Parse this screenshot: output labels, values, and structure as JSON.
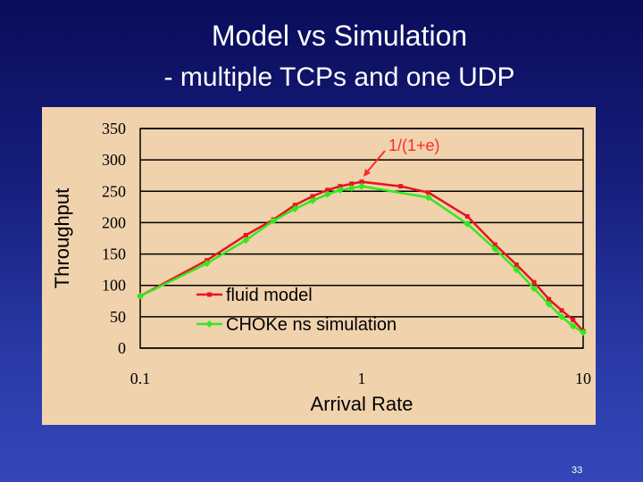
{
  "slide": {
    "title_line1": "Model vs Simulation",
    "title_line2": "- multiple TCPs and one UDP",
    "slide_number": "33"
  },
  "colors": {
    "background": "#1a237e",
    "panel": "#f0d2ad",
    "fluid_model": "#e8141e",
    "choke_sim": "#33e820",
    "annotation": "#ff2a2a"
  },
  "chart_data": {
    "type": "line",
    "title": "",
    "xlabel": "Arrival Rate",
    "ylabel": "Throughput",
    "x_scale": "log",
    "xlim": [
      0.1,
      10
    ],
    "ylim": [
      0,
      350
    ],
    "x_ticks": [
      "0.1",
      "1",
      "10"
    ],
    "y_ticks": [
      "0",
      "50",
      "100",
      "150",
      "200",
      "250",
      "300",
      "350"
    ],
    "grid": "horizontal",
    "legend_position": "bottom-center",
    "annotation": {
      "text": "1/(1+e)",
      "x": 1.0,
      "y": 266
    },
    "series": [
      {
        "name": "fluid model",
        "x": [
          0.1,
          0.2,
          0.3,
          0.4,
          0.5,
          0.6,
          0.7,
          0.8,
          0.9,
          1.0,
          1.5,
          2.0,
          3.0,
          4.0,
          5.0,
          6.0,
          7.0,
          8.0,
          9.0,
          10.0
        ],
        "y": [
          83,
          140,
          180,
          205,
          228,
          242,
          252,
          258,
          262,
          265,
          258,
          248,
          210,
          165,
          133,
          105,
          78,
          60,
          45,
          27
        ]
      },
      {
        "name": "CHOKe ns simulation",
        "x": [
          0.1,
          0.2,
          0.3,
          0.4,
          0.5,
          0.6,
          0.7,
          0.8,
          0.9,
          1.0,
          2.0,
          3.0,
          4.0,
          5.0,
          6.0,
          7.0,
          8.0,
          9.0,
          10.0
        ],
        "y": [
          83,
          135,
          172,
          203,
          222,
          235,
          245,
          252,
          255,
          258,
          240,
          198,
          158,
          125,
          95,
          70,
          50,
          35,
          25
        ]
      }
    ]
  }
}
